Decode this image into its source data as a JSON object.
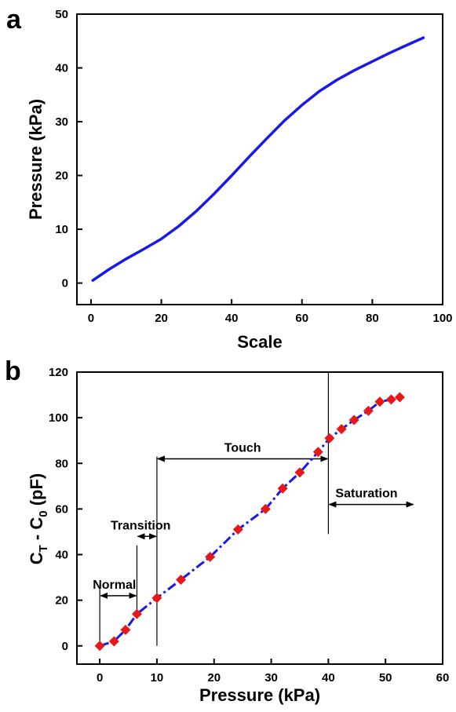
{
  "chart_data": [
    {
      "panel": "a",
      "type": "line",
      "xlabel": "Scale",
      "ylabel": "Pressure (kPa)",
      "xlim": [
        -4,
        100
      ],
      "ylim": [
        -4,
        50
      ],
      "xticks": [
        0,
        20,
        40,
        60,
        80,
        100
      ],
      "yticks": [
        0,
        10,
        20,
        30,
        40,
        50
      ],
      "grid": false,
      "series": [
        {
          "color": "#1a1ae6",
          "x": [
            0.5,
            5,
            10,
            15,
            20,
            25,
            30,
            35,
            40,
            45,
            50,
            55,
            60,
            65,
            70,
            75,
            80,
            85,
            90,
            94.5
          ],
          "y": [
            0.5,
            2.5,
            4.5,
            6.3,
            8.2,
            10.6,
            13.4,
            16.6,
            20.0,
            23.5,
            26.9,
            30.2,
            33.1,
            35.7,
            37.8,
            39.6,
            41.2,
            42.8,
            44.3,
            45.6
          ]
        }
      ]
    },
    {
      "panel": "b",
      "type": "scatter",
      "xlabel": "Pressure (kPa)",
      "ylabel_main": "C",
      "ylabel_sub_1": "T",
      "ylabel_mid": " - C",
      "ylabel_sub_2": "0",
      "ylabel_unit": " (pF)",
      "xlim": [
        -4,
        60
      ],
      "ylim": [
        -8,
        120
      ],
      "xticks": [
        0,
        10,
        20,
        30,
        40,
        50,
        60
      ],
      "yticks": [
        0,
        20,
        40,
        60,
        80,
        100,
        120
      ],
      "grid": false,
      "line_color": "#1a1ae6",
      "marker_color": "#e81818",
      "x": [
        0,
        2.5,
        4.5,
        6.5,
        10,
        14.2,
        19.3,
        24.2,
        29,
        32,
        35,
        38.2,
        40.2,
        42.3,
        44.5,
        47,
        49,
        51,
        52.5
      ],
      "y": [
        0,
        2,
        7,
        14,
        21,
        29,
        39,
        51,
        60,
        69,
        76,
        85,
        91,
        95,
        99,
        103,
        107,
        108,
        109
      ],
      "annotations": [
        {
          "text": "Normal",
          "x_start": 0,
          "x_end": 6.5,
          "y": 22
        },
        {
          "text": "Transition",
          "x_start": 6.5,
          "x_end": 10,
          "y": 48
        },
        {
          "text": "Touch",
          "x_start": 10,
          "x_end": 40,
          "y": 82
        },
        {
          "text": "Saturation",
          "x_start": 40,
          "x_end": 55,
          "y": 62
        }
      ]
    }
  ]
}
